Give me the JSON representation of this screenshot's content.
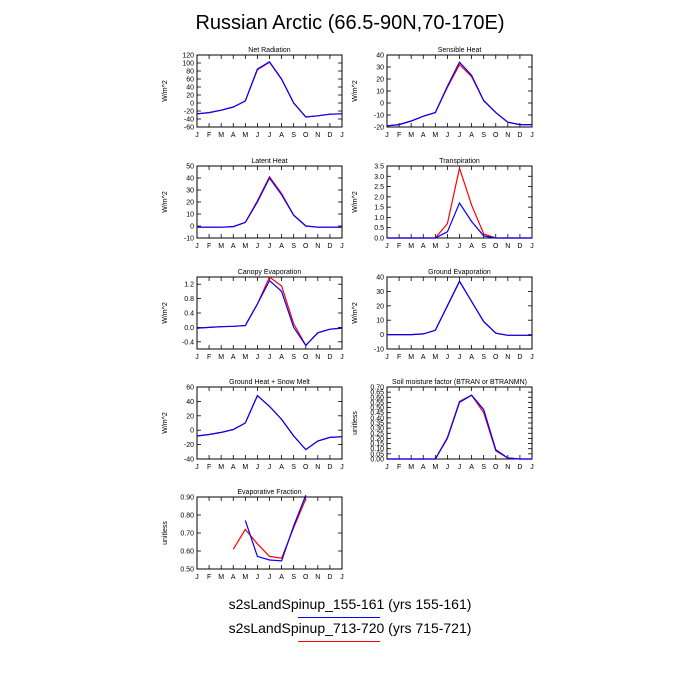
{
  "title": "Russian Arctic (66.5-90N,70-170E)",
  "colors": {
    "case1": "#0000ff",
    "case2": "#ff0000"
  },
  "legend": [
    {
      "label": "s2sLandSpinup_155-161 (yrs 155-161)",
      "color": "#0000ff"
    },
    {
      "label": "s2sLandSpinup_713-720 (yrs 715-721)",
      "color": "#ff0000"
    }
  ],
  "chart_data": [
    {
      "type": "line",
      "title": "Net Radiation",
      "ylabel": "W/m^2",
      "categories": [
        "J",
        "F",
        "M",
        "A",
        "M",
        "J",
        "J",
        "A",
        "S",
        "O",
        "N",
        "D",
        "J"
      ],
      "ylim": [
        -60,
        120
      ],
      "yticks": [
        "120",
        "100",
        "80",
        "60",
        "40",
        "20",
        "0",
        "-20",
        "-40",
        "-60"
      ],
      "series": [
        {
          "values": [
            -27,
            -24,
            -18,
            -10,
            5,
            85,
            103,
            60,
            0,
            -35,
            -32,
            -28,
            -27
          ]
        },
        {
          "values": [
            -27,
            -24,
            -18,
            -10,
            5,
            83,
            102,
            59,
            0,
            -35,
            -32,
            -28,
            -27
          ]
        }
      ]
    },
    {
      "type": "line",
      "title": "Sensible Heat",
      "ylabel": "W/m^2",
      "categories": [
        "J",
        "F",
        "M",
        "A",
        "M",
        "J",
        "J",
        "A",
        "S",
        "O",
        "N",
        "D",
        "J"
      ],
      "ylim": [
        -20,
        40
      ],
      "yticks": [
        "40",
        "30",
        "20",
        "10",
        "0",
        "-10",
        "-20"
      ],
      "series": [
        {
          "values": [
            -19,
            -18,
            -15,
            -11,
            -8,
            14,
            34,
            23,
            2,
            -8,
            -16,
            -18,
            -18
          ]
        },
        {
          "values": [
            -19,
            -18,
            -15,
            -11,
            -8,
            13,
            32,
            22,
            2,
            -8,
            -16,
            -18,
            -18
          ]
        }
      ]
    },
    {
      "type": "line",
      "title": "Latent Heat",
      "ylabel": "W/m^2",
      "categories": [
        "J",
        "F",
        "M",
        "A",
        "M",
        "J",
        "J",
        "A",
        "S",
        "O",
        "N",
        "D",
        "J"
      ],
      "ylim": [
        -10,
        50
      ],
      "yticks": [
        "50",
        "40",
        "30",
        "20",
        "10",
        "0",
        "-10"
      ],
      "series": [
        {
          "values": [
            -1,
            -1,
            -1,
            -0.5,
            3,
            20,
            40,
            26,
            9,
            0,
            -1,
            -1,
            -1
          ]
        },
        {
          "values": [
            -1,
            -1,
            -1,
            -0.5,
            3,
            21,
            41,
            27,
            9,
            0,
            -1,
            -1,
            -1
          ]
        }
      ]
    },
    {
      "type": "line",
      "title": "Transpiration",
      "ylabel": "W/m^2",
      "categories": [
        "J",
        "F",
        "M",
        "A",
        "M",
        "J",
        "J",
        "A",
        "S",
        "O",
        "N",
        "D",
        "J"
      ],
      "ylim": [
        0,
        3.5
      ],
      "yticks": [
        "3.5",
        "3.0",
        "2.5",
        "2.0",
        "1.5",
        "1.0",
        "0.5",
        "0.0"
      ],
      "series": [
        {
          "values": [
            0,
            0,
            0,
            0,
            0,
            0.3,
            1.7,
            0.8,
            0.1,
            0,
            0,
            0,
            0
          ]
        },
        {
          "values": [
            0,
            0,
            0,
            0,
            0,
            0.7,
            3.4,
            1.6,
            0.2,
            0,
            0,
            0,
            0
          ]
        }
      ]
    },
    {
      "type": "line",
      "title": "Canopy Evaporation",
      "ylabel": "W/m^2",
      "categories": [
        "J",
        "F",
        "M",
        "A",
        "M",
        "J",
        "J",
        "A",
        "S",
        "O",
        "N",
        "D",
        "J"
      ],
      "ylim": [
        -0.6,
        1.4
      ],
      "yticks": [
        "1.2",
        "0.8",
        "0.4",
        "0.0",
        "-0.4"
      ],
      "series": [
        {
          "values": [
            -0.02,
            0,
            0.02,
            0.03,
            0.05,
            0.65,
            1.3,
            1.0,
            0,
            -0.5,
            -0.15,
            -0.05,
            -0.02
          ]
        },
        {
          "values": [
            -0.02,
            0,
            0.02,
            0.03,
            0.05,
            0.65,
            1.4,
            1.15,
            0.1,
            -0.5,
            -0.15,
            -0.05,
            -0.02
          ]
        }
      ]
    },
    {
      "type": "line",
      "title": "Ground Evaporation",
      "ylabel": "W/m^2",
      "categories": [
        "J",
        "F",
        "M",
        "A",
        "M",
        "J",
        "J",
        "A",
        "S",
        "O",
        "N",
        "D",
        "J"
      ],
      "ylim": [
        -10,
        40
      ],
      "yticks": [
        "40",
        "30",
        "20",
        "10",
        "0",
        "-10"
      ],
      "series": [
        {
          "values": [
            0,
            0,
            0,
            0.5,
            3,
            20,
            37,
            23,
            9,
            1,
            -0.5,
            -0.5,
            -0.5
          ]
        },
        {
          "values": [
            0,
            0,
            0,
            0.5,
            3,
            20,
            37,
            23,
            9,
            1,
            -0.5,
            -0.5,
            -0.5
          ]
        }
      ]
    },
    {
      "type": "line",
      "title": "Ground Heat + Snow Melt",
      "ylabel": "W/m^2",
      "categories": [
        "J",
        "F",
        "M",
        "A",
        "M",
        "J",
        "J",
        "A",
        "S",
        "O",
        "N",
        "D",
        "J"
      ],
      "ylim": [
        -40,
        60
      ],
      "yticks": [
        "60",
        "40",
        "20",
        "0",
        "-20",
        "-40"
      ],
      "series": [
        {
          "values": [
            -8,
            -6,
            -3,
            1,
            10,
            48,
            33,
            15,
            -8,
            -27,
            -15,
            -10,
            -9
          ]
        },
        {
          "values": [
            -8,
            -6,
            -3,
            1,
            10,
            48,
            33,
            15,
            -8,
            -27,
            -15,
            -10,
            -9
          ]
        }
      ]
    },
    {
      "type": "line",
      "title": "Soil moisture factor (BTRAN or BTRANMN)",
      "ylabel": "unitless",
      "categories": [
        "J",
        "F",
        "M",
        "A",
        "M",
        "J",
        "J",
        "A",
        "S",
        "O",
        "N",
        "D",
        "J"
      ],
      "ylim": [
        0,
        0.7
      ],
      "yticks": [
        "0.70",
        "0.65",
        "0.60",
        "0.55",
        "0.50",
        "0.45",
        "0.40",
        "0.35",
        "0.30",
        "0.25",
        "0.20",
        "0.15",
        "0.10",
        "0.05",
        "0.00"
      ],
      "series": [
        {
          "values": [
            0,
            0,
            0,
            0,
            0,
            0.2,
            0.55,
            0.62,
            0.48,
            0.09,
            0.01,
            0,
            0
          ]
        },
        {
          "values": [
            0,
            0,
            0,
            0,
            0,
            0.21,
            0.56,
            0.62,
            0.45,
            0.08,
            0.01,
            0,
            0
          ]
        }
      ]
    },
    {
      "type": "line",
      "title": "Evaporative Fraction",
      "ylabel": "unitless",
      "categories": [
        "J",
        "F",
        "M",
        "A",
        "M",
        "J",
        "J",
        "A",
        "S",
        "O",
        "N",
        "D",
        "J"
      ],
      "ylim": [
        0.5,
        0.9
      ],
      "yticks": [
        "0.90",
        "0.80",
        "0.70",
        "0.60",
        "0.50"
      ],
      "series": [
        {
          "values": [
            null,
            null,
            null,
            null,
            0.77,
            0.57,
            0.55,
            0.545,
            0.74,
            0.91,
            null,
            null,
            null
          ]
        },
        {
          "values": [
            null,
            null,
            null,
            0.61,
            0.72,
            0.64,
            0.57,
            0.56,
            0.73,
            0.89,
            null,
            null,
            null
          ]
        }
      ]
    }
  ]
}
